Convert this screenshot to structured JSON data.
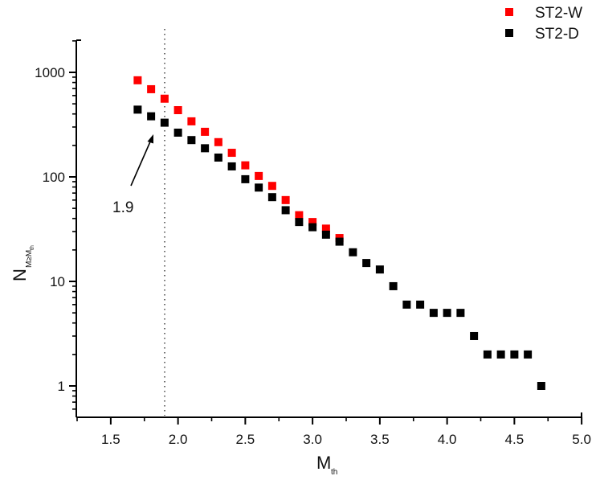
{
  "chart_data": {
    "type": "scatter",
    "title": "",
    "xlabel": "M_th",
    "xlabel_main": "M",
    "xlabel_sub": "th",
    "ylabel": "N_{M≥M_th}",
    "ylabel_main": "N",
    "ylabel_sub": "M≥M",
    "ylabel_subsub": "th",
    "xlim": [
      1.25,
      5.0
    ],
    "ylim": [
      0.6,
      2000
    ],
    "yscale": "log",
    "grid": false,
    "legend_position": "top-right",
    "x_ticks": [
      "1.5",
      "2.0",
      "2.5",
      "3.0",
      "3.5",
      "4.0",
      "4.5",
      "5.0"
    ],
    "x_tick_values": [
      1.5,
      2.0,
      2.5,
      3.0,
      3.5,
      4.0,
      4.5,
      5.0
    ],
    "y_ticks": [
      "1",
      "10",
      "100",
      "1000"
    ],
    "y_tick_values": [
      1,
      10,
      100,
      1000
    ],
    "series": [
      {
        "name": "ST2-W",
        "color": "#ff0000",
        "marker": "square",
        "x": [
          1.7,
          1.8,
          1.9,
          2.0,
          2.1,
          2.2,
          2.3,
          2.4,
          2.5,
          2.6,
          2.7,
          2.8,
          2.9,
          3.0,
          3.1,
          3.2
        ],
        "values": [
          840,
          690,
          560,
          435,
          340,
          270,
          215,
          170,
          129,
          102,
          82,
          60,
          43,
          37,
          32,
          26
        ]
      },
      {
        "name": "ST2-D",
        "color": "#000000",
        "marker": "square",
        "x": [
          1.7,
          1.8,
          1.9,
          2.0,
          2.1,
          2.2,
          2.3,
          2.4,
          2.5,
          2.6,
          2.7,
          2.8,
          2.9,
          3.0,
          3.1,
          3.2,
          3.3,
          3.4,
          3.5,
          3.6,
          3.7,
          3.8,
          3.9,
          4.0,
          4.1,
          4.2,
          4.3,
          4.4,
          4.5,
          4.6,
          4.7
        ],
        "values": [
          440,
          380,
          330,
          265,
          225,
          188,
          153,
          126,
          95,
          79,
          64,
          48,
          37,
          33,
          28,
          24,
          19,
          15,
          13,
          9,
          6,
          6,
          5,
          5,
          5,
          3,
          2,
          2,
          2,
          2,
          1
        ]
      }
    ],
    "annotations": [
      {
        "type": "vline",
        "x": 1.9,
        "style": "dotted"
      },
      {
        "type": "arrow",
        "text": "1.9",
        "points_to": [
          1.9,
          330
        ]
      }
    ]
  },
  "legend": {
    "items": [
      {
        "label": "ST2-W",
        "color": "#ff0000"
      },
      {
        "label": "ST2-D",
        "color": "#000000"
      }
    ]
  },
  "annotation_text": "1.9"
}
